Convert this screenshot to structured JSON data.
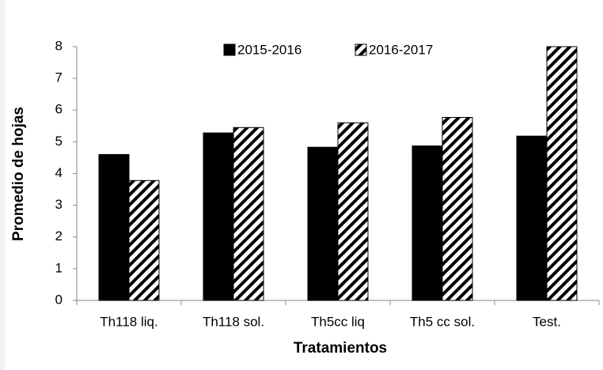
{
  "chart_data": {
    "type": "bar",
    "x_label": "Tratamientos",
    "y_label": "Promedio de hojas",
    "categories": [
      "Th118 liq.",
      "Th118 sol.",
      "Th5cc liq",
      "Th5 cc sol.",
      "Test."
    ],
    "series": [
      {
        "name": "2015-2016",
        "color": "#000000",
        "pattern": "solid",
        "values": [
          4.6,
          5.28,
          4.83,
          4.87,
          5.18
        ]
      },
      {
        "name": "2016-2017",
        "color": "#000000",
        "pattern": "hatch",
        "values": [
          3.78,
          5.45,
          5.6,
          5.77,
          8.0
        ]
      }
    ],
    "ylim": [
      0,
      8
    ],
    "yticks": [
      0,
      1,
      2,
      3,
      4,
      5,
      6,
      7,
      8
    ],
    "grid": false,
    "legend": "top"
  }
}
